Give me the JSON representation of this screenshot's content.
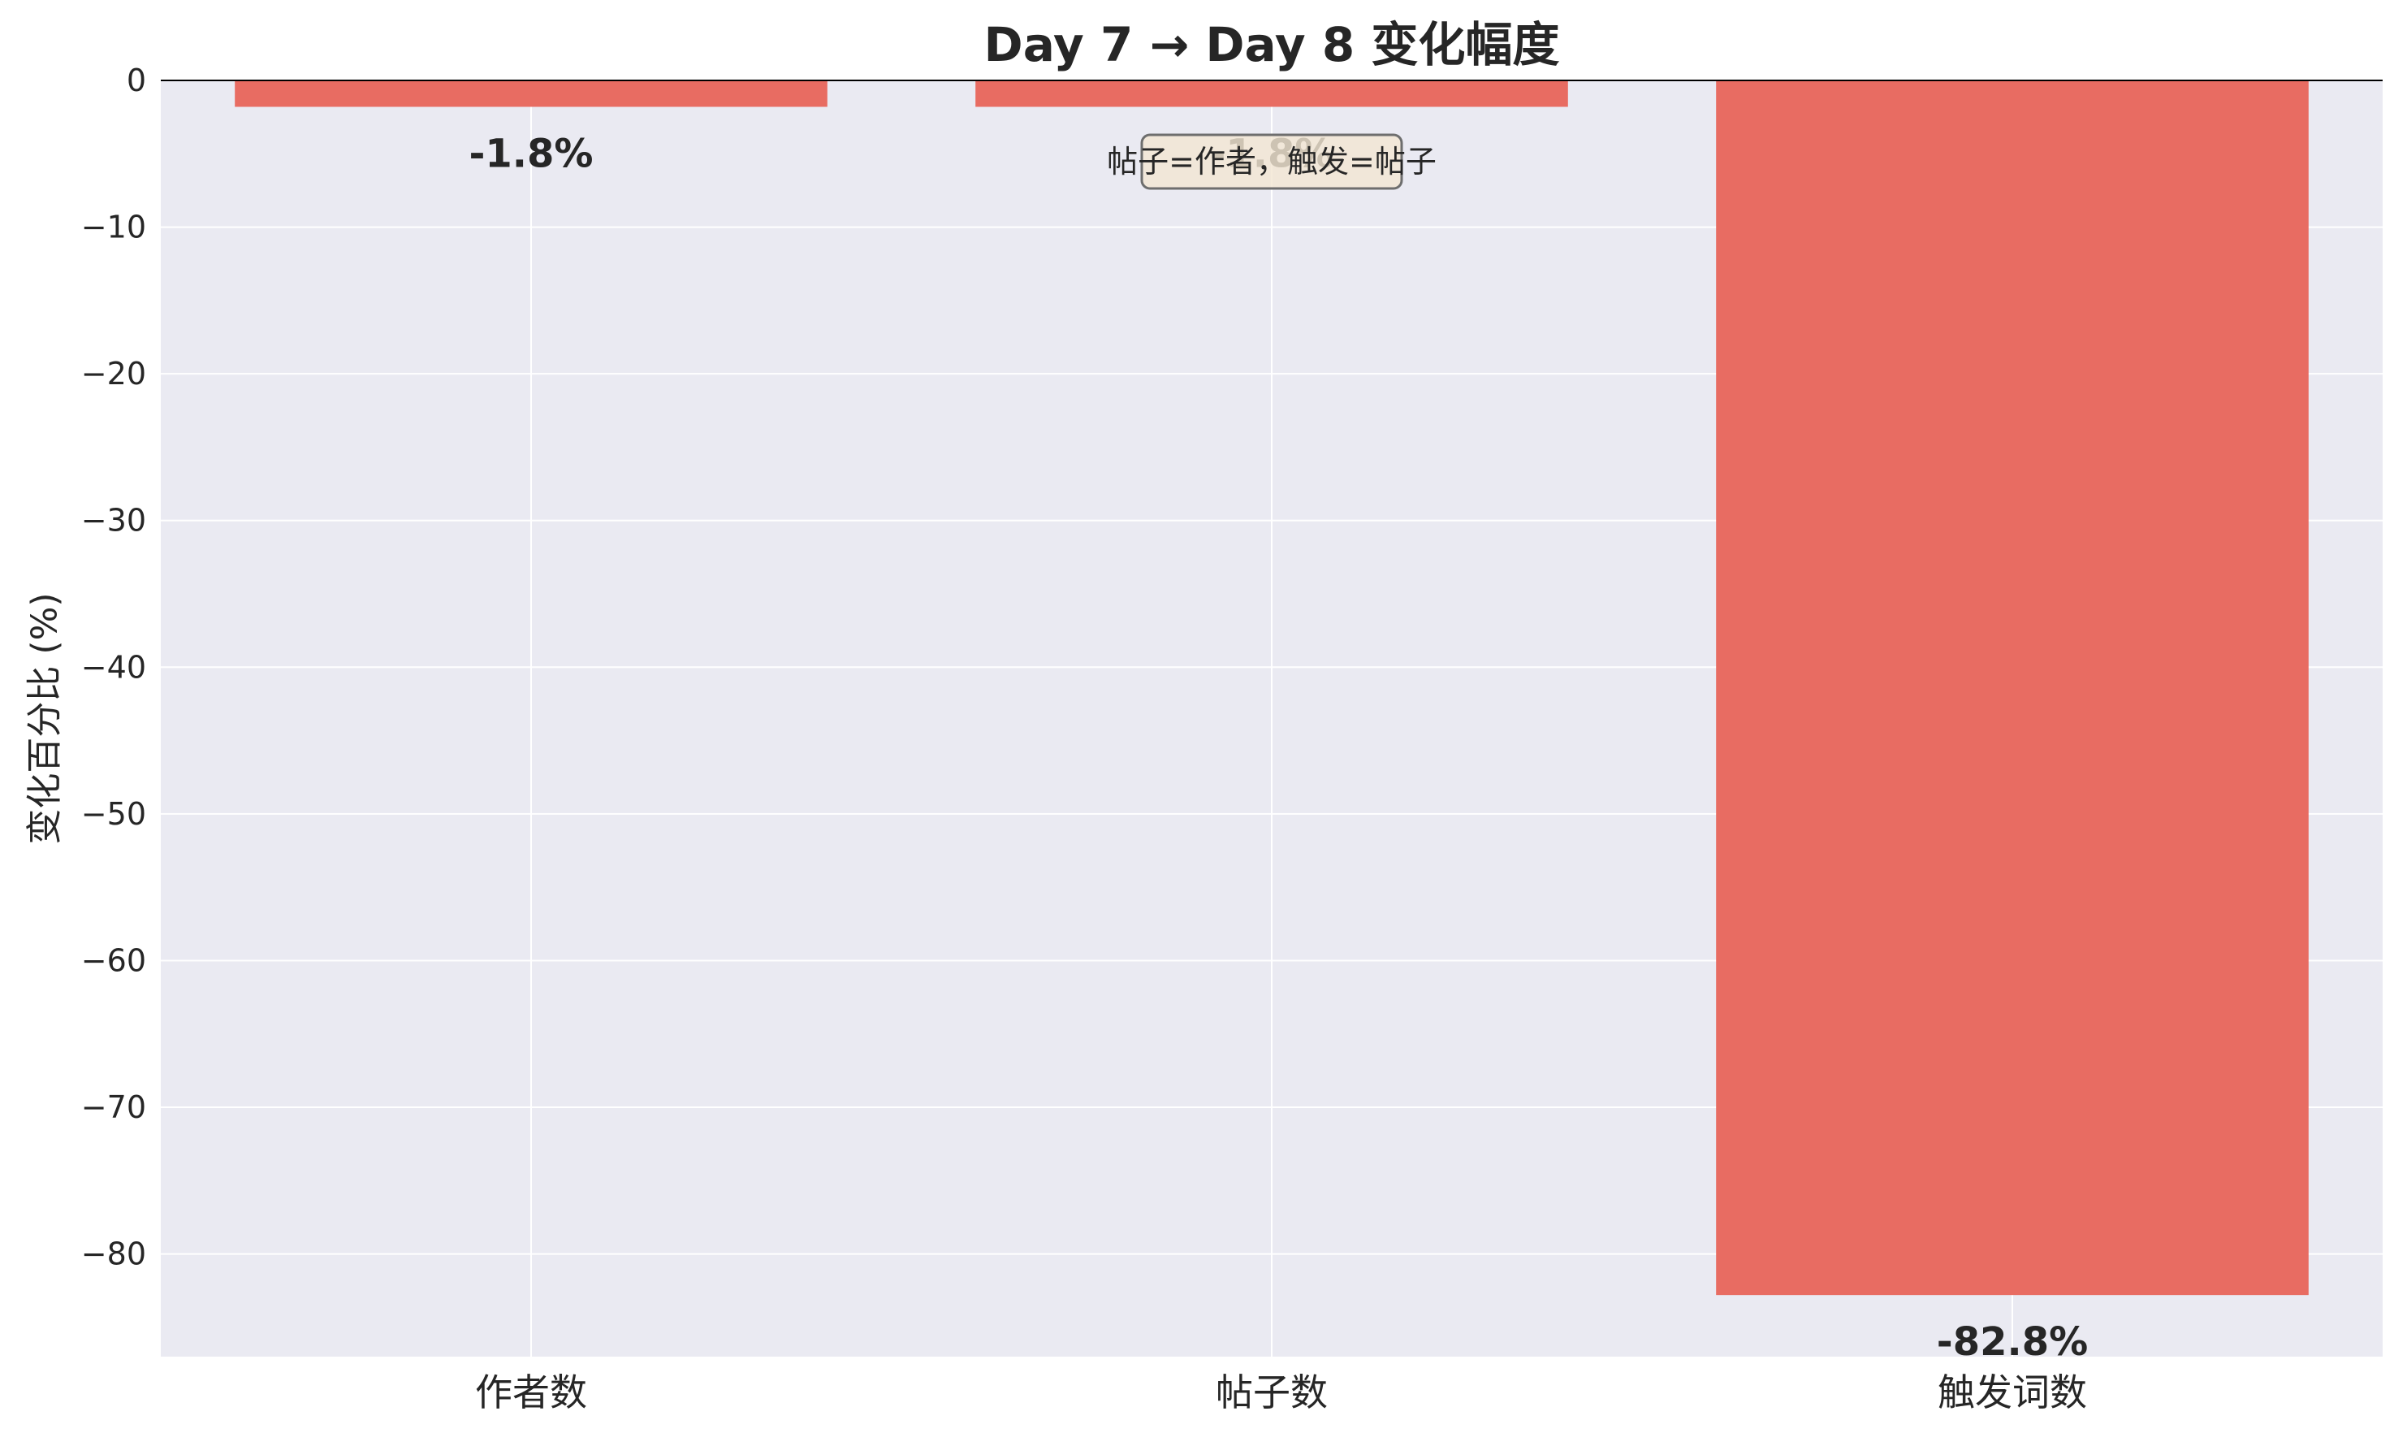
{
  "chart_data": {
    "type": "bar",
    "title": "Day 7 → Day 8 变化幅度",
    "xlabel": "",
    "ylabel": "变化百分比 (%)",
    "categories": [
      "作者数",
      "帖子数",
      "触发词数"
    ],
    "values": [
      -1.8,
      -1.8,
      -82.8
    ],
    "data_labels": [
      "-1.8%",
      "-1.8%",
      "-82.8%"
    ],
    "ylim": [
      -87,
      0
    ],
    "yticks": [
      0,
      -10,
      -20,
      -30,
      -40,
      -50,
      -60,
      -70,
      -80
    ],
    "ytick_labels": [
      "0",
      "−10",
      "−20",
      "−30",
      "−40",
      "−50",
      "−60",
      "−70",
      "−80"
    ],
    "annotation": "帖子=作者，触发=帖子",
    "grid": true,
    "colors": {
      "bar": "#e8695f",
      "plot_bg": "#eaeaf2",
      "grid": "#ffffff",
      "zero_line": "#000000",
      "annotation_bg": "#f3e6d3",
      "annotation_border": "#6e6e6e"
    }
  }
}
